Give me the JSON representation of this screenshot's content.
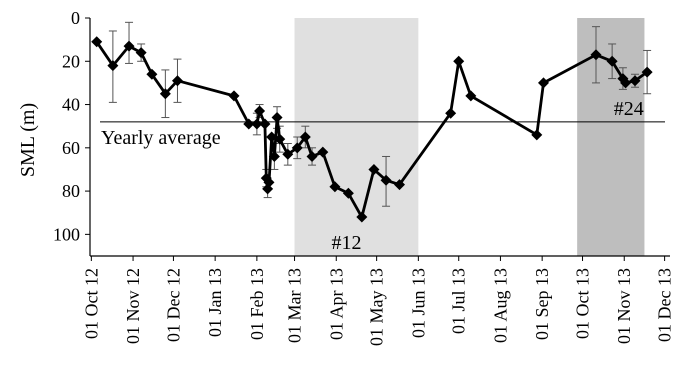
{
  "chart_data": {
    "type": "line",
    "ylabel": "SML (m)",
    "y_inverted": true,
    "ylim": [
      0,
      110
    ],
    "y_ticks": [
      0,
      20,
      40,
      60,
      80,
      100
    ],
    "xlim": [
      "2012-09-30",
      "2013-12-05"
    ],
    "x_ticks": [
      {
        "date": "2012-10-01",
        "label": "01 Oct 12"
      },
      {
        "date": "2012-11-01",
        "label": "01 Nov 12"
      },
      {
        "date": "2012-12-01",
        "label": "01 Dec 12"
      },
      {
        "date": "2013-01-01",
        "label": "01 Jan 13"
      },
      {
        "date": "2013-02-01",
        "label": "01 Feb 13"
      },
      {
        "date": "2013-03-01",
        "label": "01 Mar 13"
      },
      {
        "date": "2013-04-01",
        "label": "01 Apr 13"
      },
      {
        "date": "2013-05-01",
        "label": "01 May 13"
      },
      {
        "date": "2013-06-01",
        "label": "01 Jun 13"
      },
      {
        "date": "2013-07-01",
        "label": "01 Jul 13"
      },
      {
        "date": "2013-08-01",
        "label": "01 Aug 13"
      },
      {
        "date": "2013-09-01",
        "label": "01 Sep 13"
      },
      {
        "date": "2013-10-01",
        "label": "01 Oct 13"
      },
      {
        "date": "2013-11-01",
        "label": "01 Nov 13"
      },
      {
        "date": "2013-12-01",
        "label": "01 Dec 13"
      }
    ],
    "reference_line": {
      "label": "Yearly average",
      "y": 48
    },
    "shaded_regions": [
      {
        "label": "#12",
        "start": "2013-03-01",
        "end": "2013-06-01",
        "color": "#e0e0e0"
      },
      {
        "label": "#24",
        "start": "2013-09-27",
        "end": "2013-11-16",
        "color": "#bebebe"
      }
    ],
    "series": [
      {
        "color": "#000000",
        "marker": "diamond",
        "points": [
          {
            "x": "2012-10-05",
            "y": 11,
            "err": null
          },
          {
            "x": "2012-10-17",
            "y": 22,
            "err": [
              6,
              39
            ]
          },
          {
            "x": "2012-10-29",
            "y": 13,
            "err": [
              2,
              21
            ]
          },
          {
            "x": "2012-11-07",
            "y": 16,
            "err": [
              12,
              20
            ]
          },
          {
            "x": "2012-11-15",
            "y": 26,
            "err": null
          },
          {
            "x": "2012-11-25",
            "y": 35,
            "err": [
              24,
              46
            ]
          },
          {
            "x": "2012-12-04",
            "y": 29,
            "err": [
              19,
              39
            ]
          },
          {
            "x": "2013-01-15",
            "y": 36,
            "err": null
          },
          {
            "x": "2013-01-26",
            "y": 49,
            "err": null
          },
          {
            "x": "2013-02-01",
            "y": 49,
            "err": [
              44,
              54
            ]
          },
          {
            "x": "2013-02-03",
            "y": 43,
            "err": [
              40,
              46
            ]
          },
          {
            "x": "2013-02-07",
            "y": 49,
            "err": null
          },
          {
            "x": "2013-02-08",
            "y": 74,
            "err": [
              70,
              78
            ]
          },
          {
            "x": "2013-02-09",
            "y": 79,
            "err": [
              75,
              83
            ]
          },
          {
            "x": "2013-02-10",
            "y": 76,
            "err": null
          },
          {
            "x": "2013-02-12",
            "y": 55,
            "err": null
          },
          {
            "x": "2013-02-14",
            "y": 64,
            "err": [
              58,
              70
            ]
          },
          {
            "x": "2013-02-16",
            "y": 46,
            "err": [
              41,
              51
            ]
          },
          {
            "x": "2013-02-18",
            "y": 56,
            "err": [
              50,
              62
            ]
          },
          {
            "x": "2013-02-24",
            "y": 63,
            "err": [
              58,
              68
            ]
          },
          {
            "x": "2013-03-03",
            "y": 60,
            "err": [
              55,
              65
            ]
          },
          {
            "x": "2013-03-09",
            "y": 55,
            "err": [
              50,
              60
            ]
          },
          {
            "x": "2013-03-14",
            "y": 64,
            "err": [
              60,
              68
            ]
          },
          {
            "x": "2013-03-22",
            "y": 62,
            "err": null
          },
          {
            "x": "2013-03-31",
            "y": 78,
            "err": null
          },
          {
            "x": "2013-04-10",
            "y": 81,
            "err": null
          },
          {
            "x": "2013-04-20",
            "y": 92,
            "err": null
          },
          {
            "x": "2013-04-29",
            "y": 70,
            "err": null
          },
          {
            "x": "2013-05-08",
            "y": 75,
            "err": [
              64,
              87
            ]
          },
          {
            "x": "2013-05-18",
            "y": 77,
            "err": null
          },
          {
            "x": "2013-06-25",
            "y": 44,
            "err": null
          },
          {
            "x": "2013-07-01",
            "y": 20,
            "err": null
          },
          {
            "x": "2013-07-10",
            "y": 36,
            "err": null
          },
          {
            "x": "2013-08-28",
            "y": 54,
            "err": null
          },
          {
            "x": "2013-09-02",
            "y": 30,
            "err": null
          },
          {
            "x": "2013-10-11",
            "y": 17,
            "err": [
              4,
              30
            ]
          },
          {
            "x": "2013-10-23",
            "y": 20,
            "err": [
              12,
              28
            ]
          },
          {
            "x": "2013-10-31",
            "y": 28,
            "err": [
              23,
              33
            ]
          },
          {
            "x": "2013-11-02",
            "y": 30,
            "err": null
          },
          {
            "x": "2013-11-09",
            "y": 29,
            "err": [
              26,
              32
            ]
          },
          {
            "x": "2013-11-18",
            "y": 25,
            "err": [
              15,
              35
            ]
          }
        ]
      }
    ]
  }
}
